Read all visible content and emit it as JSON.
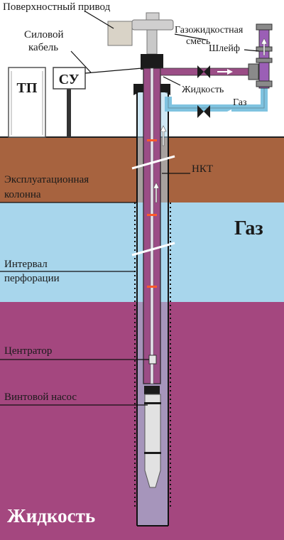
{
  "layers": {
    "soil_color": "#a7633f",
    "gas_color": "#a8d6ec",
    "liquid_color": "#a4477f",
    "mixture_color": "#9b5fb6"
  },
  "labels": {
    "surface_drive": "Поверхностный привод",
    "power_cable_1": "Силовой",
    "power_cable_2": "кабель",
    "tp": "ТП",
    "su": "СУ",
    "gas_liquid_1": "Газожидкостная",
    "gas_liquid_2": "смесь",
    "flowline": "Шлейф",
    "liquid": "Жидкость",
    "gas": "Газ",
    "casing_1": "Эксплуатационная",
    "casing_2": "колонна",
    "tubing": "НКТ",
    "gas_zone": "Газ",
    "perforation_1": "Интервал",
    "perforation_2": "перфорации",
    "centralizer": "Центратор",
    "screw_pump": "Винтовой насос",
    "liquid_zone": "Жидкость"
  }
}
